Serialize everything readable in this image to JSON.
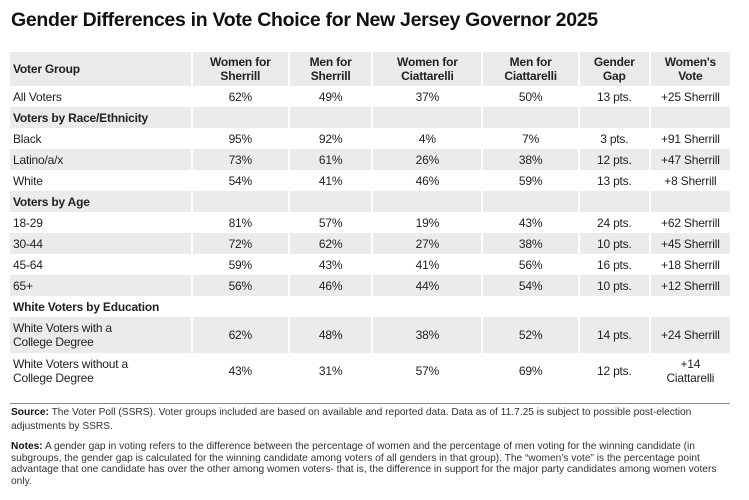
{
  "title": "Gender Differences in Vote Choice for New Jersey Governor 2025",
  "columns": [
    "Voter Group",
    "Women for Sherrill",
    "Men for Sherrill",
    "Women for Ciattarelli",
    "Men for Ciattarelli",
    "Gender Gap",
    "Women's Vote"
  ],
  "rows": [
    {
      "type": "data",
      "cells": [
        "All Voters",
        "62%",
        "49%",
        "37%",
        "50%",
        "13 pts.",
        "+25 Sherrill"
      ]
    },
    {
      "type": "group",
      "cells": [
        "Voters by Race/Ethnicity",
        "",
        "",
        "",
        "",
        "",
        ""
      ]
    },
    {
      "type": "data",
      "cells": [
        "Black",
        "95%",
        "92%",
        "4%",
        "7%",
        "3 pts.",
        "+91 Sherrill"
      ]
    },
    {
      "type": "data",
      "cells": [
        "Latino/a/x",
        "73%",
        "61%",
        "26%",
        "38%",
        "12 pts.",
        "+47 Sherrill"
      ]
    },
    {
      "type": "data",
      "cells": [
        "White",
        "54%",
        "41%",
        "46%",
        "59%",
        "13 pts.",
        "+8 Sherrill"
      ]
    },
    {
      "type": "group",
      "cells": [
        "Voters by Age",
        "",
        "",
        "",
        "",
        "",
        ""
      ]
    },
    {
      "type": "data",
      "cells": [
        "18-29",
        "81%",
        "57%",
        "19%",
        "43%",
        "24 pts.",
        "+62 Sherrill"
      ]
    },
    {
      "type": "data",
      "cells": [
        "30-44",
        "72%",
        "62%",
        "27%",
        "38%",
        "10 pts.",
        "+45 Sherrill"
      ]
    },
    {
      "type": "data",
      "cells": [
        "45-64",
        "59%",
        "43%",
        "41%",
        "56%",
        "16 pts.",
        "+18 Sherrill"
      ]
    },
    {
      "type": "data",
      "cells": [
        "65+",
        "56%",
        "46%",
        "44%",
        "54%",
        "10 pts.",
        "+12 Sherrill"
      ]
    },
    {
      "type": "group",
      "cells": [
        "White Voters by Education",
        "",
        "",
        "",
        "",
        "",
        ""
      ]
    },
    {
      "type": "data",
      "cells": [
        "White Voters with a College Degree",
        "62%",
        "48%",
        "38%",
        "52%",
        "14 pts.",
        "+24 Sherrill"
      ]
    },
    {
      "type": "data",
      "cells": [
        "White Voters without a College Degree",
        "43%",
        "31%",
        "57%",
        "69%",
        "12 pts.",
        "+14 Ciattarelli"
      ]
    }
  ],
  "source": {
    "label": "Source:",
    "text": " The Voter Poll (SSRS). Voter groups included are based on available and reported data. Data as of 11.7.25 is subject to possible post-election adjustments by SSRS."
  },
  "notes": {
    "label": "Notes:",
    "text": " A gender gap in voting refers to the difference between the percentage of women and the percentage of men voting for the winning candidate (in subgroups, the gender gap is calculated for the winning candidate among voters of all genders in that group). The “women’s vote” is the percentage point advantage that one candidate has over the other among women voters- that is, the difference in support for the major party candidates among women voters only."
  }
}
